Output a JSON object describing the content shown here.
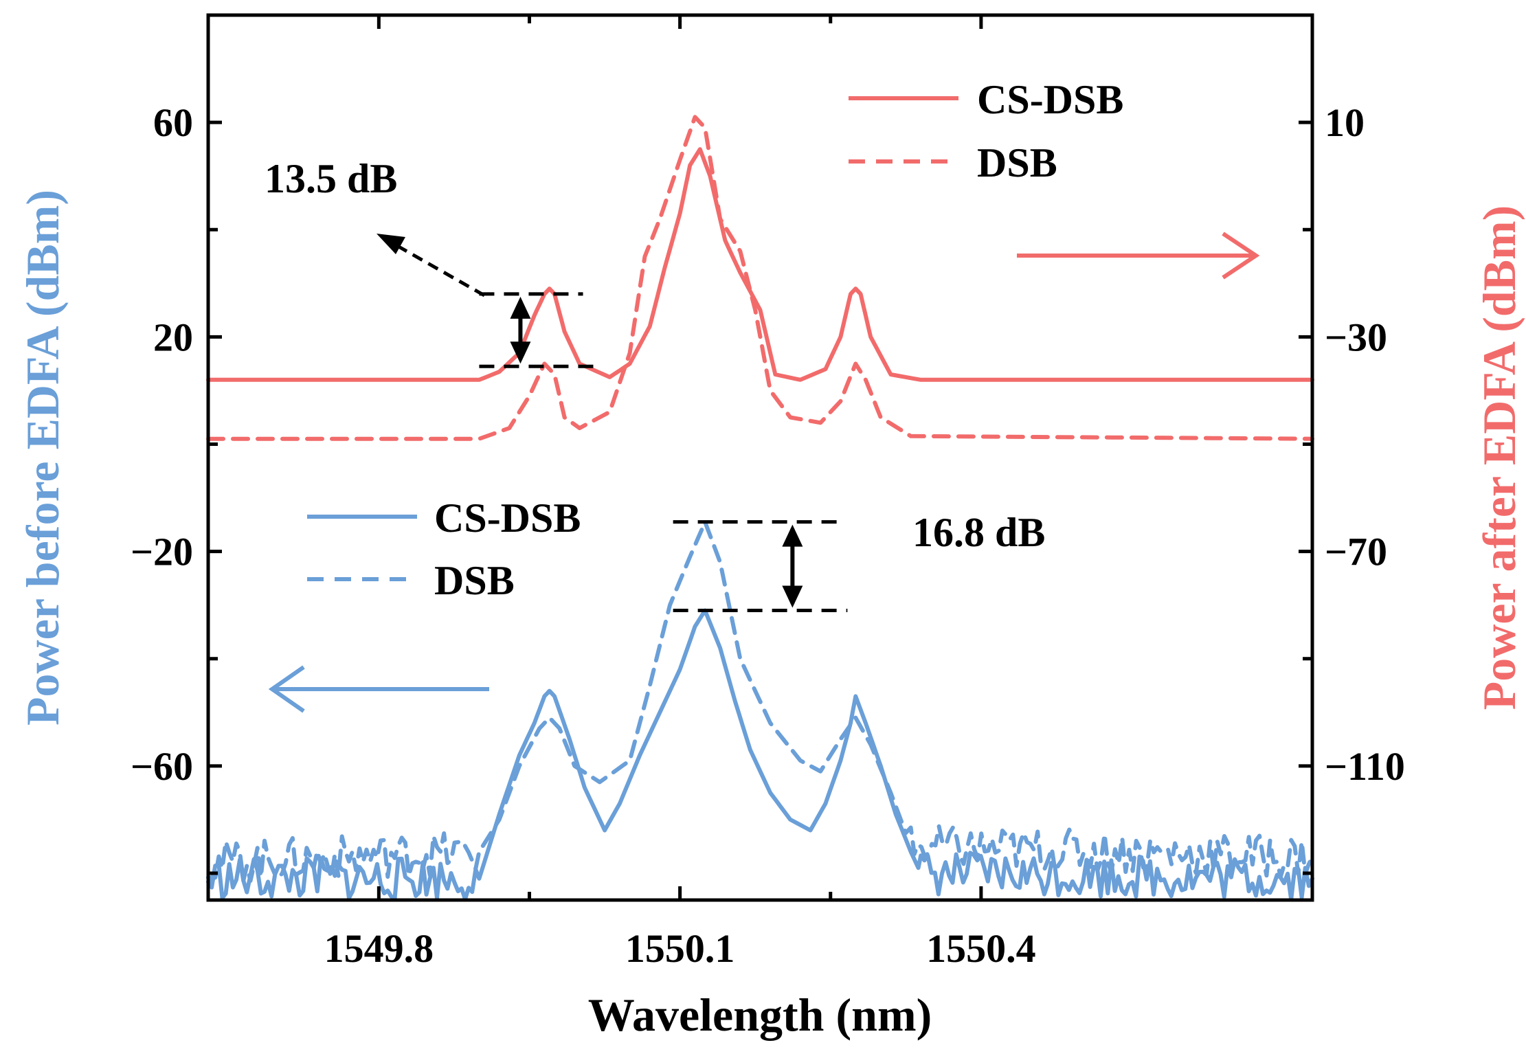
{
  "chart_data": {
    "type": "line",
    "title": "",
    "xlabel": "Wavelength (nm)",
    "ylabel_left": "Power before EDFA (dBm)",
    "ylabel_right": "Power after EDFA (dBm)",
    "xlim": [
      1549.63,
      1550.73
    ],
    "ylim_left": [
      -85,
      80
    ],
    "ylim_right": [
      -135,
      30
    ],
    "x_ticks": [
      1549.8,
      1550.1,
      1550.4
    ],
    "x_tick_labels": [
      "1549.8",
      "1550.1",
      "1550.4"
    ],
    "y_left_ticks": [
      60,
      20,
      -20,
      -60
    ],
    "y_left_tick_labels": [
      "60",
      "20",
      "−20",
      "−60"
    ],
    "y_right_ticks": [
      10,
      -30,
      -70,
      -110
    ],
    "y_right_tick_labels": [
      "10",
      "−30",
      "−70",
      "−110"
    ],
    "colors": {
      "after": "#f26b6b",
      "before": "#6a9fd8"
    },
    "series": [
      {
        "name": "CS-DSB",
        "group": "after",
        "axis": "right",
        "style": "solid",
        "x": [
          1549.63,
          1549.9,
          1549.92,
          1549.94,
          1549.955,
          1549.965,
          1549.97,
          1549.975,
          1549.985,
          1550.0,
          1550.03,
          1550.05,
          1550.07,
          1550.085,
          1550.1,
          1550.11,
          1550.12,
          1550.13,
          1550.145,
          1550.16,
          1550.18,
          1550.195,
          1550.22,
          1550.245,
          1550.26,
          1550.27,
          1550.275,
          1550.28,
          1550.29,
          1550.31,
          1550.34,
          1550.73
        ],
        "y": [
          -38,
          -38,
          -36.5,
          -33,
          -26,
          -22,
          -21,
          -22,
          -29,
          -35,
          -37.5,
          -35,
          -28,
          -17,
          -7,
          2,
          5,
          0,
          -12,
          -18,
          -25,
          -37,
          -38,
          -36,
          -30,
          -22,
          -21,
          -22,
          -30,
          -37,
          -38,
          -38
        ]
      },
      {
        "name": "DSB",
        "group": "after",
        "axis": "right",
        "style": "dash",
        "x": [
          1549.63,
          1549.9,
          1549.93,
          1549.95,
          1549.965,
          1549.975,
          1549.985,
          1550.0,
          1550.03,
          1550.05,
          1550.065,
          1550.08,
          1550.1,
          1550.115,
          1550.125,
          1550.14,
          1550.16,
          1550.175,
          1550.19,
          1550.21,
          1550.24,
          1550.26,
          1550.275,
          1550.285,
          1550.3,
          1550.33,
          1550.73
        ],
        "y": [
          -49,
          -49,
          -47,
          -41,
          -35,
          -37,
          -45,
          -47,
          -44,
          -33,
          -15,
          -8,
          3,
          11,
          9,
          -8,
          -14,
          -25,
          -40,
          -45,
          -46,
          -42,
          -35,
          -38,
          -45,
          -48.5,
          -49
        ]
      },
      {
        "name": "CS-DSB",
        "group": "before",
        "axis": "left",
        "style": "solid",
        "x": [
          1549.63,
          1549.9,
          1549.92,
          1549.94,
          1549.955,
          1549.965,
          1549.97,
          1549.975,
          1549.99,
          1550.005,
          1550.025,
          1550.04,
          1550.06,
          1550.08,
          1550.1,
          1550.115,
          1550.125,
          1550.14,
          1550.155,
          1550.17,
          1550.19,
          1550.21,
          1550.23,
          1550.245,
          1550.26,
          1550.27,
          1550.275,
          1550.285,
          1550.3,
          1550.315,
          1550.33,
          1550.34,
          1550.73
        ],
        "y": [
          -81,
          -81,
          -69,
          -58,
          -52,
          -47,
          -46,
          -47,
          -55,
          -64,
          -72,
          -67,
          -58,
          -50,
          -42,
          -34,
          -31,
          -38,
          -48,
          -57,
          -65,
          -70,
          -72,
          -67,
          -59,
          -52,
          -47,
          -52,
          -60,
          -69,
          -76,
          -80,
          -81
        ]
      },
      {
        "name": "DSB",
        "group": "before",
        "axis": "left",
        "style": "dash",
        "x": [
          1549.63,
          1549.9,
          1549.92,
          1549.94,
          1549.96,
          1549.97,
          1549.98,
          1549.995,
          1550.02,
          1550.05,
          1550.07,
          1550.09,
          1550.11,
          1550.125,
          1550.14,
          1550.16,
          1550.19,
          1550.22,
          1550.24,
          1550.26,
          1550.275,
          1550.29,
          1550.31,
          1550.33,
          1550.73
        ],
        "y": [
          -78,
          -76,
          -70,
          -60,
          -53,
          -51,
          -53,
          -60,
          -63,
          -59,
          -45,
          -30,
          -21,
          -14.5,
          -22,
          -40,
          -52,
          -59,
          -61,
          -55,
          -51,
          -56,
          -65,
          -75,
          -77
        ]
      }
    ],
    "annotations": [
      {
        "text": "13.5 dB",
        "axis": "right",
        "x_range": [
          1549.9,
          1550.0
        ],
        "y_top": -22,
        "y_bottom": -35.5
      },
      {
        "text": "16.8 dB",
        "axis": "left",
        "x_range": [
          1550.1,
          1550.26
        ],
        "y_top": -14.5,
        "y_bottom": -31
      }
    ],
    "legend": {
      "after": {
        "placement": "top-right",
        "entries": [
          "CS-DSB",
          "DSB"
        ]
      },
      "before": {
        "placement": "center-left",
        "entries": [
          "CS-DSB",
          "DSB"
        ]
      }
    }
  }
}
